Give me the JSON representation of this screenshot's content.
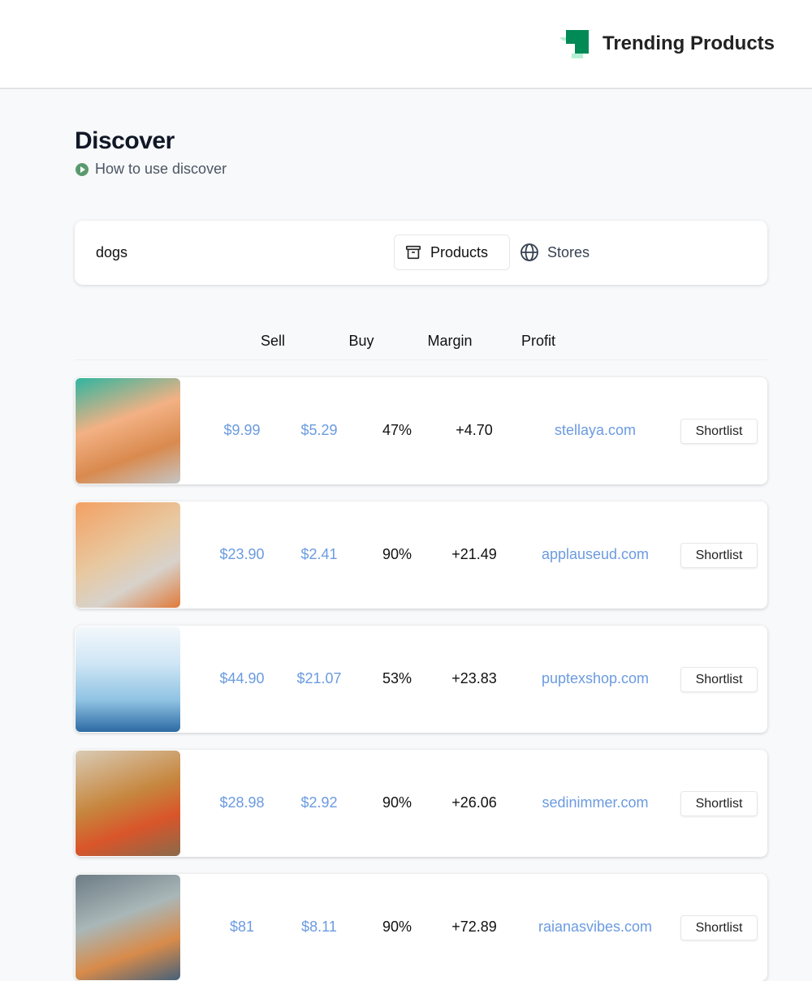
{
  "header": {
    "brand": "Trending Products",
    "logo_colors": [
      "#008a56",
      "#b5f0d5"
    ]
  },
  "page": {
    "title": "Discover",
    "help_link": "How to use discover"
  },
  "search": {
    "value": "dogs",
    "tabs": [
      {
        "label": "Products",
        "icon": "archive-box-icon",
        "active": true
      },
      {
        "label": "Stores",
        "icon": "globe-icon",
        "active": false
      }
    ]
  },
  "table": {
    "columns": [
      "Sell",
      "Buy",
      "Margin",
      "Profit"
    ],
    "rows": [
      {
        "image": "dog grooming brush product photo",
        "sell": "$9.99",
        "buy": "$5.29",
        "margin": "47%",
        "profit": "+4.70",
        "store": "stellaya.com",
        "action": "Shortlist"
      },
      {
        "image": "pet steam brush product photo",
        "sell": "$23.90",
        "buy": "$2.41",
        "margin": "90%",
        "profit": "+21.49",
        "store": "applauseud.com",
        "action": "Shortlist"
      },
      {
        "image": "Sprinkly dog sprinkler pool product photo",
        "sell": "$44.90",
        "buy": "$21.07",
        "margin": "53%",
        "profit": "+23.83",
        "store": "puptexshop.com",
        "action": "Shortlist"
      },
      {
        "image": "dog with plush toy product photo",
        "sell": "$28.98",
        "buy": "$2.92",
        "margin": "90%",
        "profit": "+26.06",
        "store": "sedinimmer.com",
        "action": "Shortlist"
      },
      {
        "image": "dog car seat cover product photo",
        "sell": "$81",
        "buy": "$8.11",
        "margin": "90%",
        "profit": "+72.89",
        "store": "raianasvibes.com",
        "action": "Shortlist"
      }
    ]
  }
}
